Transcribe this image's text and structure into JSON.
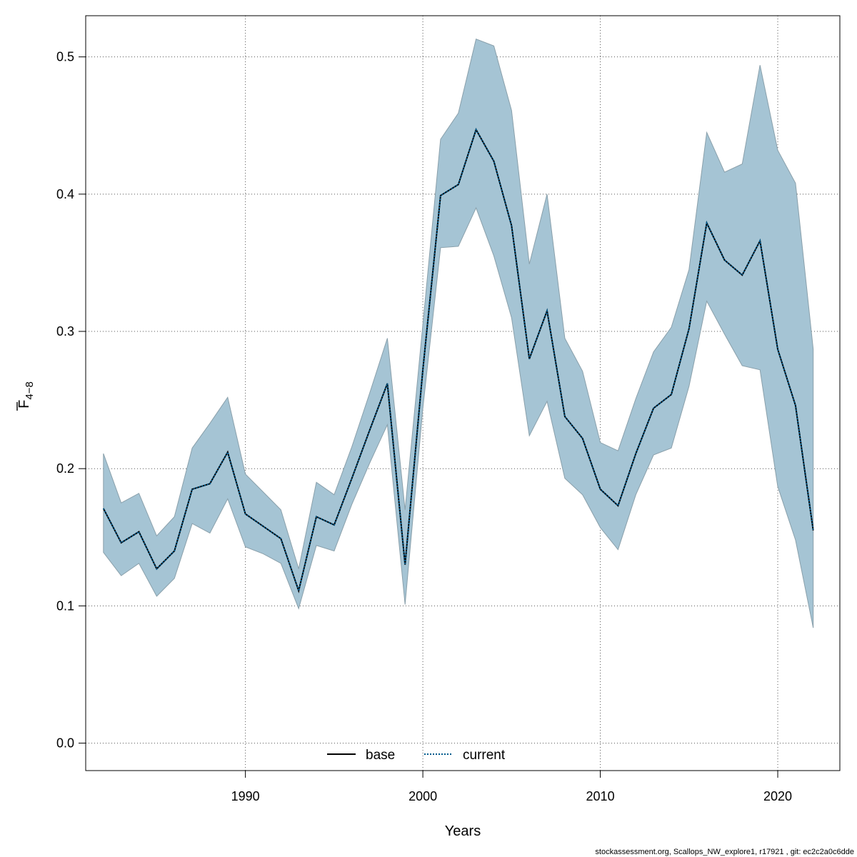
{
  "chart_data": {
    "type": "line",
    "xlabel": "Years",
    "ylabel_main": "F",
    "ylabel_sub": "4−8",
    "xlim": [
      1981,
      2023.5
    ],
    "ylim": [
      -0.02,
      0.53
    ],
    "x_ticks": [
      1990,
      2000,
      2010,
      2020
    ],
    "y_ticks": [
      0.0,
      0.1,
      0.2,
      0.3,
      0.4,
      0.5
    ],
    "x_tick_labels": [
      "1990",
      "2000",
      "2010",
      "2020"
    ],
    "y_tick_labels": [
      "0.0",
      "0.1",
      "0.2",
      "0.3",
      "0.4",
      "0.5"
    ],
    "grid": true,
    "legend_position": "bottom-center",
    "legend": [
      {
        "label": "base",
        "style": "solid",
        "color": "#000000"
      },
      {
        "label": "current",
        "style": "dotted",
        "color": "#005a8c"
      }
    ],
    "band_color": "#a5c4d4",
    "band_edge_color": "#8aa0ab",
    "x": [
      1982,
      1983,
      1984,
      1985,
      1986,
      1987,
      1988,
      1989,
      1990,
      1991,
      1992,
      1993,
      1994,
      1995,
      1996,
      1997,
      1998,
      1999,
      2000,
      2001,
      2002,
      2003,
      2004,
      2005,
      2006,
      2007,
      2008,
      2009,
      2010,
      2011,
      2012,
      2013,
      2014,
      2015,
      2016,
      2017,
      2018,
      2019,
      2020,
      2021,
      2022
    ],
    "series": [
      {
        "name": "base",
        "style": "solid",
        "color": "#000000",
        "values": [
          0.171,
          0.146,
          0.154,
          0.127,
          0.14,
          0.185,
          0.189,
          0.212,
          0.167,
          0.158,
          0.149,
          0.111,
          0.165,
          0.159,
          0.193,
          0.228,
          0.262,
          0.13,
          0.272,
          0.399,
          0.407,
          0.447,
          0.424,
          0.377,
          0.28,
          0.315,
          0.238,
          0.222,
          0.185,
          0.173,
          0.211,
          0.244,
          0.254,
          0.302,
          0.379,
          0.352,
          0.341,
          0.366,
          0.287,
          0.246,
          0.155
        ]
      },
      {
        "name": "current",
        "style": "dotted",
        "color": "#005a8c",
        "values": [
          0.171,
          0.146,
          0.154,
          0.127,
          0.14,
          0.185,
          0.189,
          0.212,
          0.167,
          0.158,
          0.149,
          0.111,
          0.165,
          0.159,
          0.193,
          0.228,
          0.262,
          0.13,
          0.272,
          0.399,
          0.407,
          0.447,
          0.424,
          0.377,
          0.28,
          0.315,
          0.238,
          0.222,
          0.185,
          0.173,
          0.211,
          0.244,
          0.254,
          0.302,
          0.379,
          0.352,
          0.341,
          0.366,
          0.287,
          0.246,
          0.155
        ]
      }
    ],
    "band_lower": [
      0.139,
      0.122,
      0.131,
      0.107,
      0.12,
      0.16,
      0.153,
      0.178,
      0.143,
      0.138,
      0.131,
      0.098,
      0.144,
      0.14,
      0.174,
      0.204,
      0.232,
      0.101,
      0.244,
      0.361,
      0.362,
      0.39,
      0.355,
      0.31,
      0.224,
      0.249,
      0.193,
      0.181,
      0.157,
      0.141,
      0.181,
      0.21,
      0.215,
      0.26,
      0.322,
      0.298,
      0.275,
      0.272,
      0.187,
      0.148,
      0.084
    ],
    "band_upper": [
      0.211,
      0.175,
      0.182,
      0.151,
      0.165,
      0.215,
      0.233,
      0.252,
      0.196,
      0.183,
      0.17,
      0.127,
      0.19,
      0.181,
      0.216,
      0.255,
      0.295,
      0.17,
      0.305,
      0.44,
      0.459,
      0.513,
      0.508,
      0.461,
      0.349,
      0.4,
      0.295,
      0.271,
      0.219,
      0.213,
      0.251,
      0.285,
      0.303,
      0.345,
      0.445,
      0.416,
      0.422,
      0.494,
      0.432,
      0.408,
      0.287
    ]
  },
  "footer": "stockassessment.org, Scallops_NW_explore1, r17921 , git: ec2c2a0c6dde"
}
